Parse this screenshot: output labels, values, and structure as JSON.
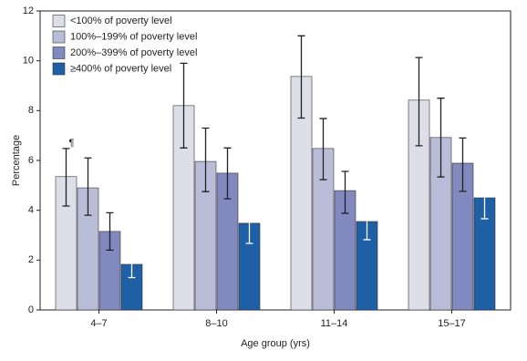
{
  "chart_data": {
    "type": "bar",
    "x_label": "Age group (yrs)",
    "y_label": "Percentage",
    "categories": [
      "4–7",
      "8–10",
      "11–14",
      "15–17"
    ],
    "ylim": [
      0,
      12
    ],
    "yticks": [
      0,
      2,
      4,
      6,
      8,
      10,
      12
    ],
    "legend_position": "upper left",
    "annotations": [
      {
        "text": "¶",
        "category": 0,
        "series": 0
      }
    ],
    "series": [
      {
        "name": "<100% of poverty level",
        "color": "#dddee8",
        "error_color": "#222222",
        "values": [
          5.35,
          8.2,
          9.37,
          8.42
        ],
        "ci_low": [
          4.17,
          6.5,
          7.7,
          6.59
        ],
        "ci_high": [
          6.48,
          9.9,
          11.0,
          10.13
        ]
      },
      {
        "name": "100%–199% of poverty level",
        "color": "#babdd8",
        "error_color": "#222222",
        "values": [
          4.9,
          5.96,
          6.48,
          6.92
        ],
        "ci_low": [
          3.8,
          4.75,
          5.23,
          5.34
        ],
        "ci_high": [
          6.1,
          7.3,
          7.68,
          8.5
        ]
      },
      {
        "name": "200%–399% of poverty level",
        "color": "#8189be",
        "error_color": "#222222",
        "values": [
          3.15,
          5.49,
          4.79,
          5.89
        ],
        "ci_low": [
          2.4,
          4.46,
          3.88,
          4.76
        ],
        "ci_high": [
          3.9,
          6.5,
          5.56,
          6.9
        ]
      },
      {
        "name": "≥400% of poverty level",
        "color": "#1f5fa6",
        "error_color": "#ffffff",
        "values": [
          1.83,
          3.48,
          3.55,
          4.5
        ],
        "ci_low": [
          1.3,
          2.67,
          2.82,
          3.66
        ],
        "ci_high": [
          2.35,
          4.3,
          4.2,
          5.38
        ]
      }
    ]
  }
}
